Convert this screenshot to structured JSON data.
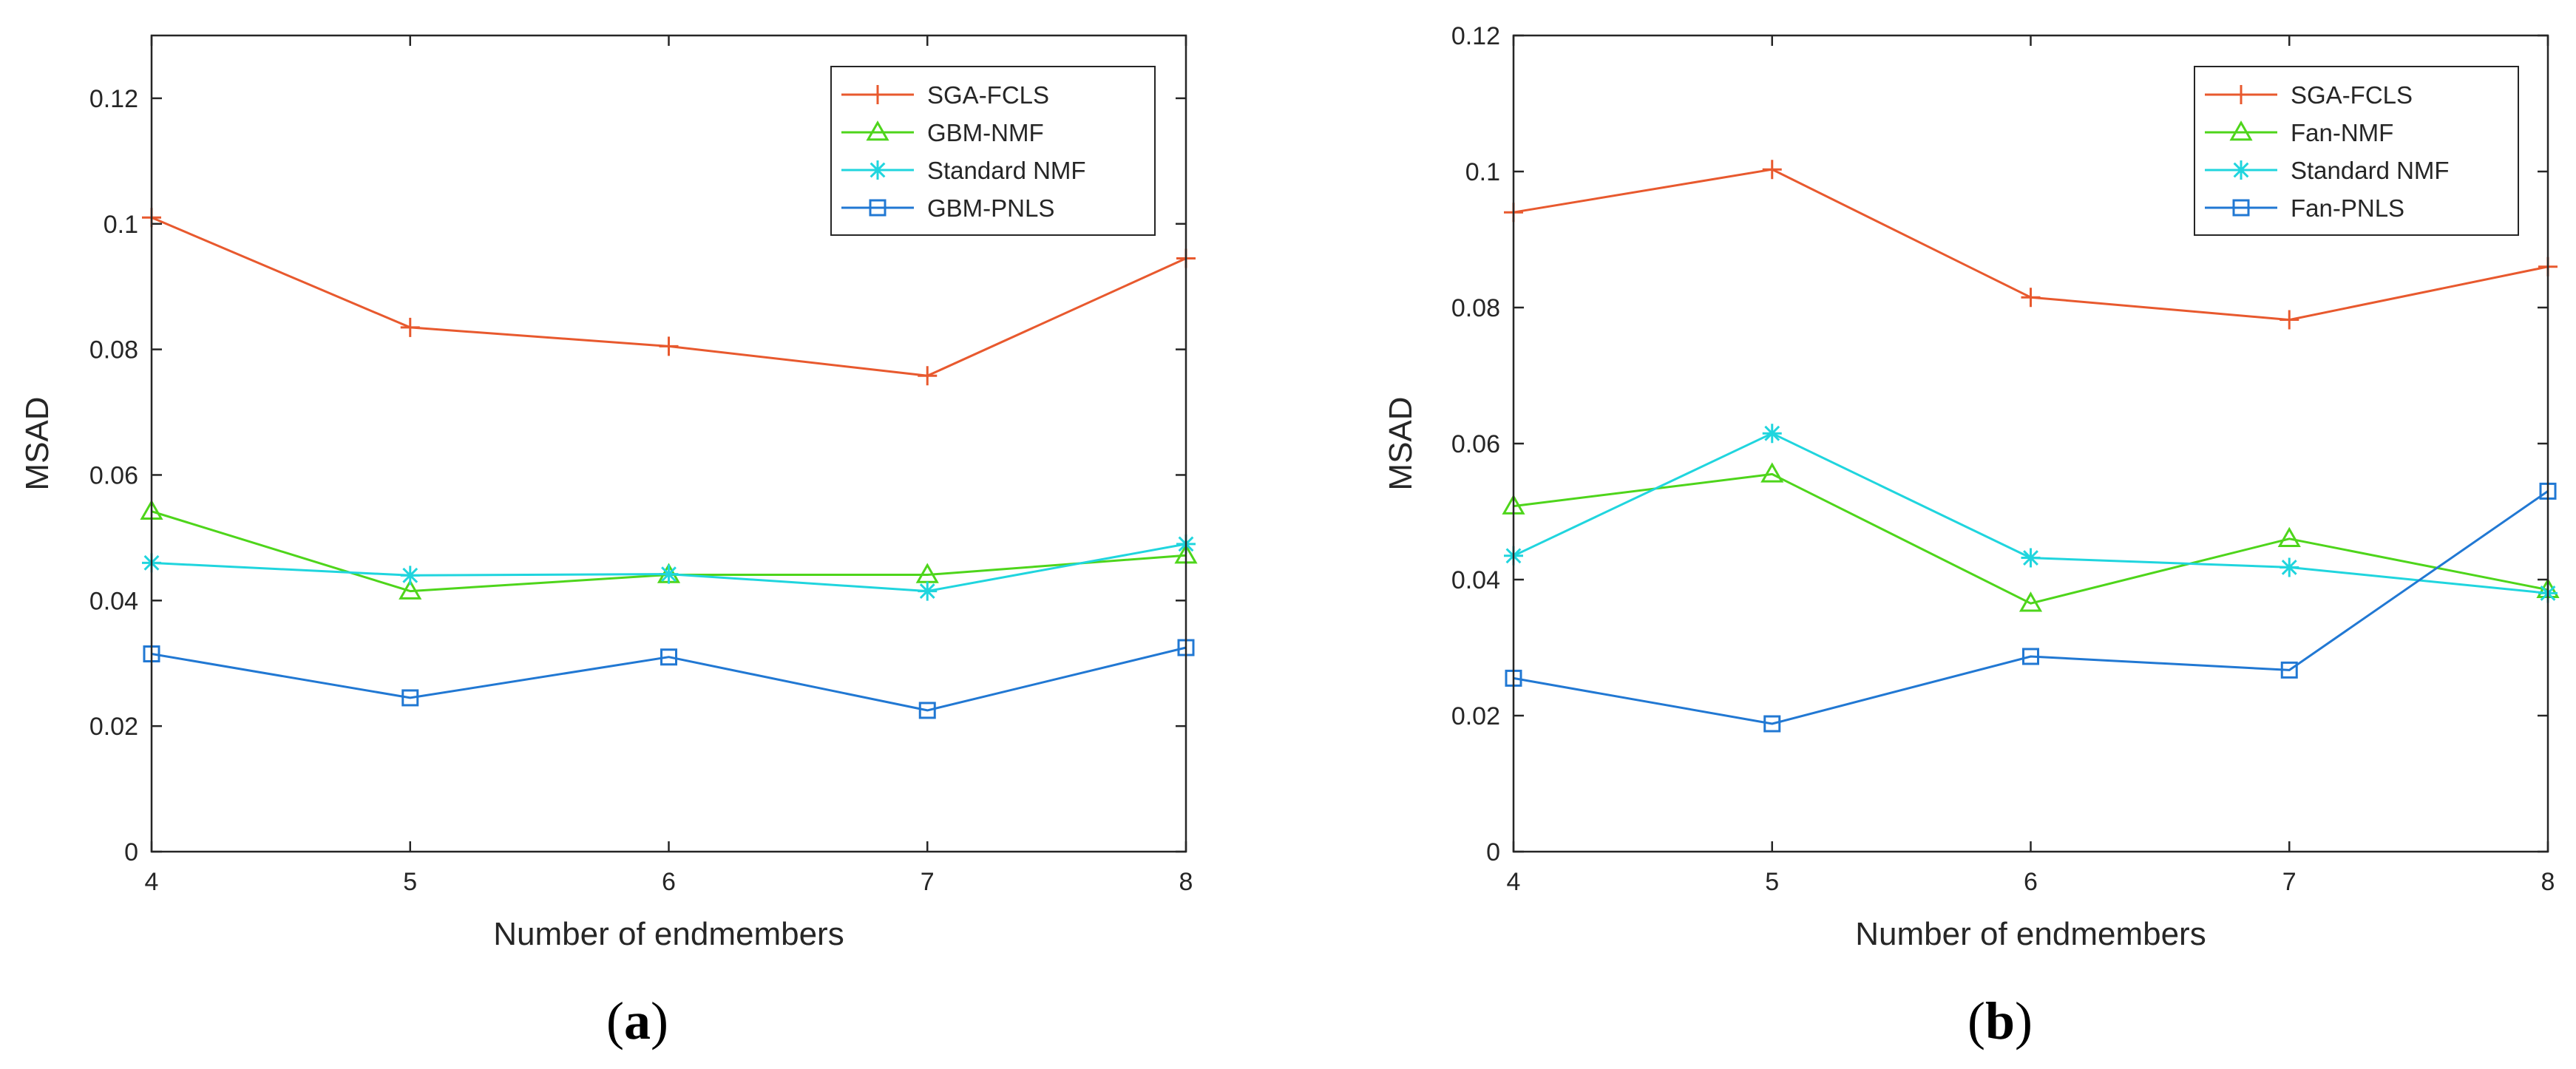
{
  "colors": {
    "sga": "#e8592e",
    "green": "#4ed51b",
    "cyan": "#20d5de",
    "blue": "#2178d3",
    "axis": "#262626"
  },
  "chart_data": [
    {
      "type": "line",
      "caption_label": "a",
      "xlabel": "Number of endmembers",
      "ylabel": "MSAD",
      "xlim": [
        4,
        8
      ],
      "ylim": [
        0,
        0.13
      ],
      "x": [
        4,
        5,
        6,
        7,
        8
      ],
      "xticks": [
        "4",
        "5",
        "6",
        "7",
        "8"
      ],
      "yticks": [
        0,
        0.02,
        0.04,
        0.06,
        0.08,
        0.1,
        0.12
      ],
      "ytick_labels": [
        "0",
        "0.02",
        "0.04",
        "0.06",
        "0.08",
        "0.1",
        "0.12"
      ],
      "legend_position": "top-right",
      "series": [
        {
          "name": "SGA-FCLS",
          "marker": "plus",
          "color_key": "sga",
          "values": [
            0.101,
            0.0835,
            0.0805,
            0.0758,
            0.0945
          ]
        },
        {
          "name": "GBM-NMF",
          "marker": "triangle",
          "color_key": "green",
          "values": [
            0.0542,
            0.0415,
            0.0441,
            0.0441,
            0.0472
          ]
        },
        {
          "name": "Standard NMF",
          "marker": "asterisk",
          "color_key": "cyan",
          "values": [
            0.046,
            0.044,
            0.0442,
            0.0415,
            0.049
          ]
        },
        {
          "name": "GBM-PNLS",
          "marker": "square",
          "color_key": "blue",
          "values": [
            0.0315,
            0.0245,
            0.031,
            0.0225,
            0.0325
          ]
        }
      ]
    },
    {
      "type": "line",
      "caption_label": "b",
      "xlabel": "Number of endmembers",
      "ylabel": "MSAD",
      "xlim": [
        4,
        8
      ],
      "ylim": [
        0,
        0.12
      ],
      "x": [
        4,
        5,
        6,
        7,
        8
      ],
      "xticks": [
        "4",
        "5",
        "6",
        "7",
        "8"
      ],
      "yticks": [
        0,
        0.02,
        0.04,
        0.06,
        0.08,
        0.1,
        0.12
      ],
      "ytick_labels": [
        "0",
        "0.02",
        "0.04",
        "0.06",
        "0.08",
        "0.1",
        "0.12"
      ],
      "legend_position": "top-right",
      "series": [
        {
          "name": "SGA-FCLS",
          "marker": "plus",
          "color_key": "sga",
          "values": [
            0.094,
            0.1003,
            0.0815,
            0.0782,
            0.086
          ]
        },
        {
          "name": "Fan-NMF",
          "marker": "triangle",
          "color_key": "green",
          "values": [
            0.0508,
            0.0555,
            0.0365,
            0.046,
            0.0385
          ]
        },
        {
          "name": "Standard NMF",
          "marker": "asterisk",
          "color_key": "cyan",
          "values": [
            0.0435,
            0.0615,
            0.0432,
            0.0418,
            0.038
          ]
        },
        {
          "name": "Fan-PNLS",
          "marker": "square",
          "color_key": "blue",
          "values": [
            0.0255,
            0.0188,
            0.0287,
            0.0267,
            0.053
          ]
        }
      ]
    }
  ]
}
